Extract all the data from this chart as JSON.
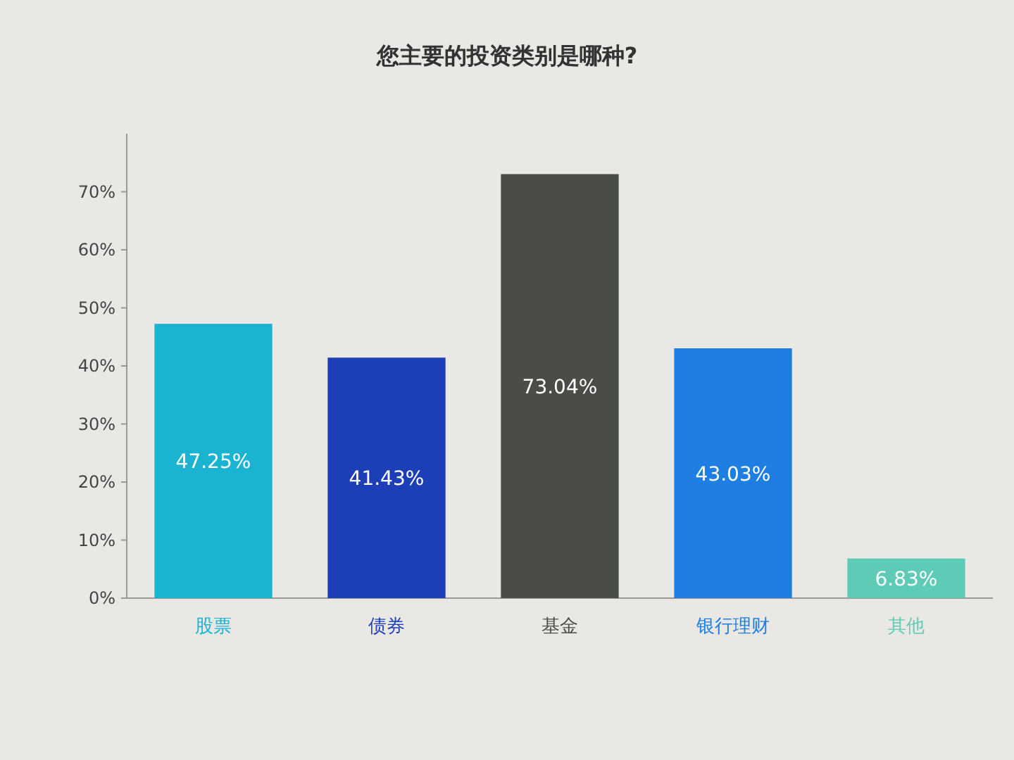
{
  "chart_data": {
    "type": "bar",
    "title": "您主要的投资类别是哪种?",
    "categories": [
      "股票",
      "债券",
      "基金",
      "银行理财",
      "其他"
    ],
    "values": [
      47.25,
      41.43,
      73.04,
      43.03,
      6.83
    ],
    "value_labels": [
      "47.25%",
      "41.43%",
      "73.04%",
      "43.03%",
      "6.83%"
    ],
    "colors": [
      "#1ab4d2",
      "#1c3fb8",
      "#4a4c48",
      "#1f7ee2",
      "#5ecbb6"
    ],
    "ylim": [
      0,
      80
    ],
    "yticks": [
      {
        "value": 0,
        "label": "0%"
      },
      {
        "value": 10,
        "label": "10%"
      },
      {
        "value": 20,
        "label": "20%"
      },
      {
        "value": 30,
        "label": "30%"
      },
      {
        "value": 40,
        "label": "40%"
      },
      {
        "value": 50,
        "label": "50%"
      },
      {
        "value": 60,
        "label": "60%"
      },
      {
        "value": 70,
        "label": "70%"
      }
    ]
  }
}
